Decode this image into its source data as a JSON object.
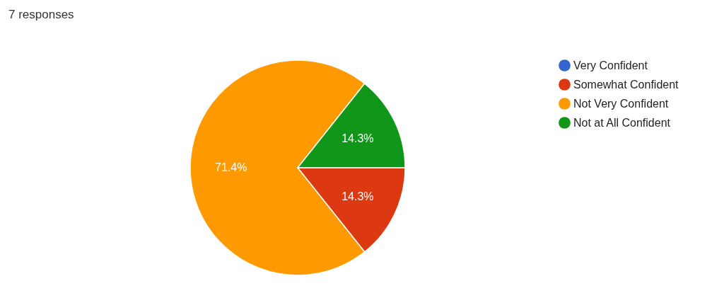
{
  "chart_data": {
    "type": "pie",
    "title": "7 responses",
    "categories": [
      "Very Confident",
      "Somewhat Confident",
      "Not Very Confident",
      "Not at All Confident"
    ],
    "values": [
      0,
      14.3,
      71.4,
      14.3
    ],
    "colors": [
      "#3366cc",
      "#dc3912",
      "#ff9900",
      "#109618"
    ],
    "value_labels": [
      null,
      "14.3%",
      "71.4%",
      "14.3%"
    ],
    "legend": "right"
  }
}
